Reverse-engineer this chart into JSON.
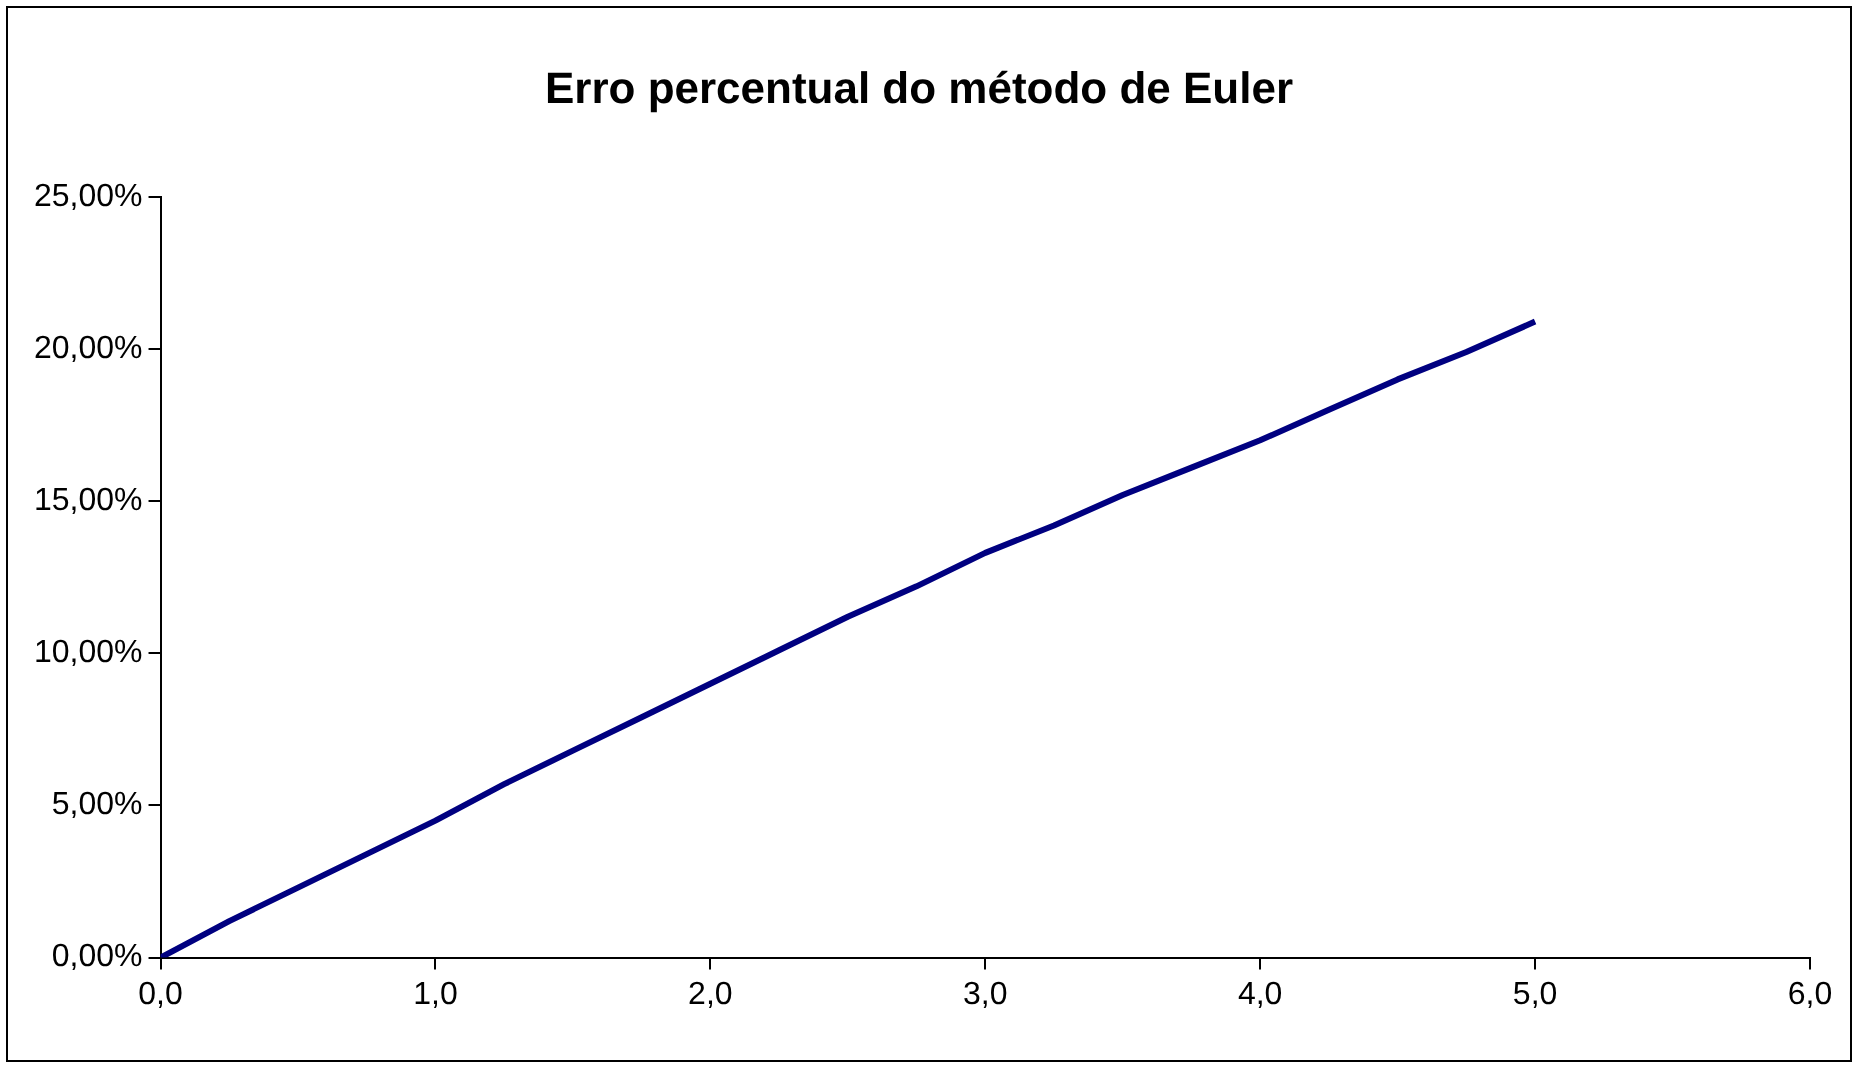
{
  "chart_data": {
    "type": "line",
    "title": "Erro percentual do método de Euler",
    "x": [
      0,
      0.25,
      0.5,
      0.75,
      1,
      1.25,
      1.5,
      1.75,
      2,
      2.25,
      2.5,
      2.75,
      3,
      3.25,
      3.5,
      3.75,
      4,
      4.25,
      4.5,
      4.75,
      5
    ],
    "series": [
      {
        "color": "#000080",
        "values": [
          0,
          1.2,
          2.3,
          3.4,
          4.5,
          5.7,
          6.8,
          7.9,
          9.0,
          10.1,
          11.2,
          12.2,
          13.3,
          14.2,
          15.2,
          16.1,
          17.0,
          18.0,
          19.0,
          19.9,
          20.9
        ]
      }
    ],
    "xlim": [
      0,
      6
    ],
    "xticks": [
      {
        "value": 0,
        "label": "0,0"
      },
      {
        "value": 1,
        "label": "1,0"
      },
      {
        "value": 2,
        "label": "2,0"
      },
      {
        "value": 3,
        "label": "3,0"
      },
      {
        "value": 4,
        "label": "4,0"
      },
      {
        "value": 5,
        "label": "5,0"
      },
      {
        "value": 6,
        "label": "6,0"
      }
    ],
    "ylim": [
      0,
      25
    ],
    "yticks": [
      {
        "value": 0,
        "label": "0,00%"
      },
      {
        "value": 5,
        "label": "5,00%"
      },
      {
        "value": 10,
        "label": "10,00%"
      },
      {
        "value": 15,
        "label": "15,00%"
      },
      {
        "value": 20,
        "label": "20,00%"
      },
      {
        "value": 25,
        "label": "25,00%"
      }
    ],
    "grid": false,
    "legend": false,
    "marker": "none",
    "line_style": "solid"
  }
}
